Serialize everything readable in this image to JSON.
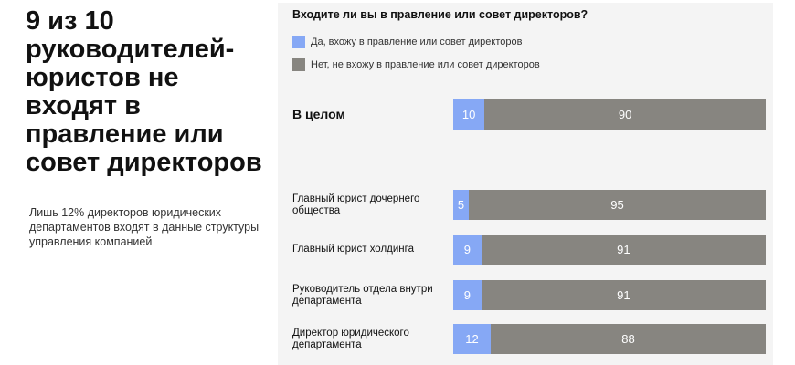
{
  "headline": "9 из 10 руководителей-юристов не входят в правление или совет директоров",
  "lead": "Лишь 12% директоров юридических департаментов входят в данные структуры управления компанией",
  "chart_data": {
    "type": "bar",
    "orientation": "horizontal",
    "stacked": true,
    "title": "Входите ли вы в правление или совет директоров?",
    "legend_position": "top-left",
    "colors": {
      "yes": "#86a8f5",
      "no": "#878580"
    },
    "series": [
      {
        "name": "Да, вхожу в правление или совет директоров",
        "key": "yes"
      },
      {
        "name": "Нет, не вхожу в правление или совет директоров",
        "key": "no"
      }
    ],
    "rows": [
      {
        "label": "В целом",
        "yes": 10,
        "no": 90,
        "total": true
      },
      {
        "label": "Главный юрист дочернего общества",
        "yes": 5,
        "no": 95
      },
      {
        "label": "Главный юрист холдинга",
        "yes": 9,
        "no": 91
      },
      {
        "label": "Руководитель отдела внутри департамента",
        "yes": 9,
        "no": 91
      },
      {
        "label": "Директор юридического департамента",
        "yes": 12,
        "no": 88
      }
    ]
  }
}
